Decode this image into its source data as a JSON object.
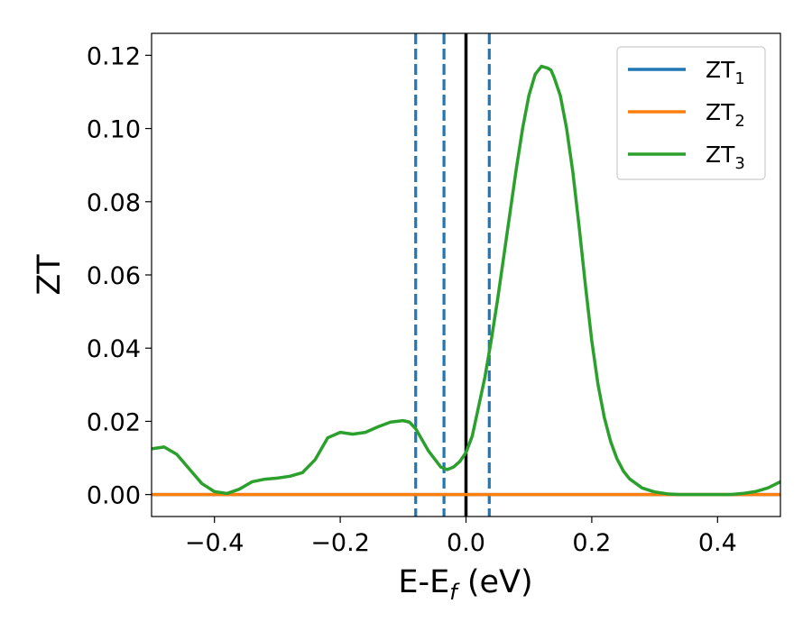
{
  "chart_data": {
    "type": "line",
    "title": "",
    "xlabel": {
      "main": "E-E",
      "sub": "f",
      "suffix": " (eV)"
    },
    "ylabel": "ZT",
    "xlim": [
      -0.5,
      0.5
    ],
    "ylim": [
      -0.006,
      0.126
    ],
    "x_ticks": [
      -0.4,
      -0.2,
      0.0,
      0.2,
      0.4
    ],
    "x_tick_labels": [
      "−0.4",
      "−0.2",
      "0.0",
      "0.2",
      "0.4"
    ],
    "y_ticks": [
      0.0,
      0.02,
      0.04,
      0.06,
      0.08,
      0.1,
      0.12
    ],
    "y_tick_labels": [
      "0.00",
      "0.02",
      "0.04",
      "0.06",
      "0.08",
      "0.10",
      "0.12"
    ],
    "grid": false,
    "legend_position": "top-right",
    "series": [
      {
        "name": "ZT",
        "sub": "1",
        "color": "#1f77b4",
        "x": [
          -0.5,
          0.5
        ],
        "y": [
          0.0,
          0.0
        ]
      },
      {
        "name": "ZT",
        "sub": "2",
        "color": "#ff7f0e",
        "x": [
          -0.5,
          0.5
        ],
        "y": [
          0.0,
          0.0
        ]
      },
      {
        "name": "ZT",
        "sub": "3",
        "color": "#2ca02c",
        "x": [
          -0.5,
          -0.48,
          -0.46,
          -0.44,
          -0.42,
          -0.4,
          -0.38,
          -0.36,
          -0.34,
          -0.32,
          -0.3,
          -0.28,
          -0.26,
          -0.24,
          -0.22,
          -0.2,
          -0.18,
          -0.16,
          -0.14,
          -0.12,
          -0.1,
          -0.09,
          -0.08,
          -0.06,
          -0.04,
          -0.03,
          -0.02,
          -0.01,
          0.0,
          0.01,
          0.02,
          0.03,
          0.04,
          0.05,
          0.06,
          0.07,
          0.08,
          0.09,
          0.1,
          0.11,
          0.12,
          0.13,
          0.135,
          0.14,
          0.15,
          0.16,
          0.17,
          0.18,
          0.19,
          0.2,
          0.21,
          0.22,
          0.23,
          0.24,
          0.25,
          0.26,
          0.28,
          0.3,
          0.32,
          0.34,
          0.36,
          0.38,
          0.4,
          0.42,
          0.44,
          0.46,
          0.48,
          0.5
        ],
        "y": [
          0.0125,
          0.013,
          0.011,
          0.007,
          0.003,
          0.0008,
          0.0003,
          0.0015,
          0.0035,
          0.0042,
          0.0045,
          0.005,
          0.006,
          0.0095,
          0.0155,
          0.017,
          0.0165,
          0.017,
          0.0185,
          0.0198,
          0.0202,
          0.0198,
          0.018,
          0.012,
          0.0075,
          0.0068,
          0.0075,
          0.009,
          0.0115,
          0.016,
          0.024,
          0.032,
          0.042,
          0.053,
          0.065,
          0.077,
          0.089,
          0.1,
          0.109,
          0.1148,
          0.117,
          0.1165,
          0.116,
          0.114,
          0.109,
          0.1,
          0.088,
          0.073,
          0.057,
          0.042,
          0.03,
          0.021,
          0.0145,
          0.0098,
          0.0065,
          0.0043,
          0.0018,
          0.0007,
          0.0002,
          0.0,
          0.0,
          0.0,
          0.0,
          0.0,
          0.0003,
          0.0008,
          0.0018,
          0.0035
        ]
      }
    ],
    "vertical_lines": [
      {
        "x": -0.08,
        "style": "dashed",
        "color": "#1f77b4"
      },
      {
        "x": -0.035,
        "style": "dashed",
        "color": "#1f77b4"
      },
      {
        "x": 0.0,
        "style": "solid",
        "color": "#000000"
      },
      {
        "x": 0.037,
        "style": "dashed",
        "color": "#1f77b4"
      }
    ]
  }
}
